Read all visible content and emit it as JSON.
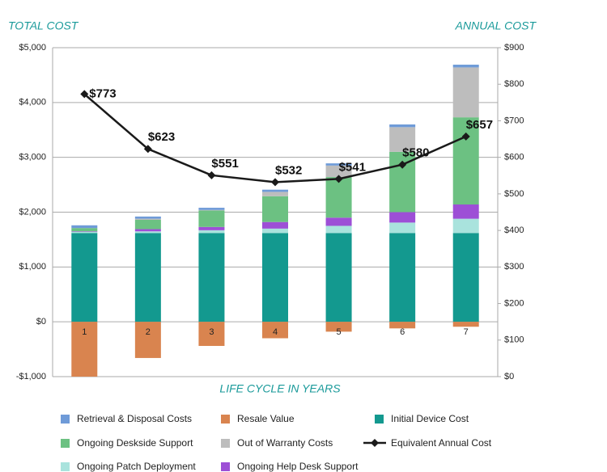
{
  "chart_data": {
    "type": "bar",
    "stacked": true,
    "y_axis_title": "TOTAL COST",
    "y2_axis_title": "ANNUAL COST",
    "x_axis_title": "LIFE CYCLE IN YEARS",
    "categories": [
      "1",
      "2",
      "3",
      "4",
      "5",
      "6",
      "7"
    ],
    "series": [
      {
        "name": "Initial Device Cost",
        "color": "#13998f",
        "values": [
          1620,
          1620,
          1620,
          1620,
          1620,
          1620,
          1620
        ]
      },
      {
        "name": "Ongoing Patch Deployment",
        "color": "#a9e3dd",
        "values": [
          20,
          30,
          50,
          80,
          130,
          190,
          260
        ]
      },
      {
        "name": "Ongoing Help Desk Support",
        "color": "#9d4fd6",
        "values": [
          10,
          40,
          60,
          120,
          150,
          190,
          260
        ]
      },
      {
        "name": "Ongoing Deskside Support",
        "color": "#6cc182",
        "values": [
          60,
          170,
          300,
          470,
          740,
          1100,
          1590
        ]
      },
      {
        "name": "Out of Warranty Costs",
        "color": "#bdbdbd",
        "values": [
          0,
          20,
          10,
          80,
          210,
          450,
          910
        ]
      },
      {
        "name": "Retrieval & Disposal Costs",
        "color": "#6f9bd8",
        "values": [
          50,
          40,
          40,
          40,
          40,
          50,
          50
        ]
      },
      {
        "name": "Resale Value",
        "color": "#d9844f",
        "values": [
          -1000,
          -660,
          -440,
          -300,
          -180,
          -120,
          -90
        ]
      },
      {
        "name": "Equivalent Annual Cost",
        "type": "line",
        "axis": "y2",
        "color": "#1a1a1a",
        "values": [
          773,
          623,
          551,
          532,
          541,
          580,
          657
        ],
        "value_labels": [
          "$773",
          "$623",
          "$551",
          "$532",
          "$541",
          "$580",
          "$657"
        ]
      }
    ],
    "ylim": [
      -1000,
      5000
    ],
    "yticks": [
      {
        "value": -1000,
        "label": "-$1,000"
      },
      {
        "value": 0,
        "label": "$0"
      },
      {
        "value": 1000,
        "label": "$1,000"
      },
      {
        "value": 2000,
        "label": "$2,000"
      },
      {
        "value": 3000,
        "label": "$3,000"
      },
      {
        "value": 4000,
        "label": "$4,000"
      },
      {
        "value": 5000,
        "label": "$5,000"
      }
    ],
    "y2lim": [
      0,
      900
    ],
    "y2ticks": [
      {
        "value": 0,
        "label": "$0"
      },
      {
        "value": 100,
        "label": "$100"
      },
      {
        "value": 200,
        "label": "$200"
      },
      {
        "value": 300,
        "label": "$300"
      },
      {
        "value": 400,
        "label": "$400"
      },
      {
        "value": 500,
        "label": "$500"
      },
      {
        "value": 600,
        "label": "$600"
      },
      {
        "value": 700,
        "label": "$700"
      },
      {
        "value": 800,
        "label": "$800"
      },
      {
        "value": 900,
        "label": "$900"
      }
    ],
    "grid": true,
    "legend": "bottom"
  }
}
